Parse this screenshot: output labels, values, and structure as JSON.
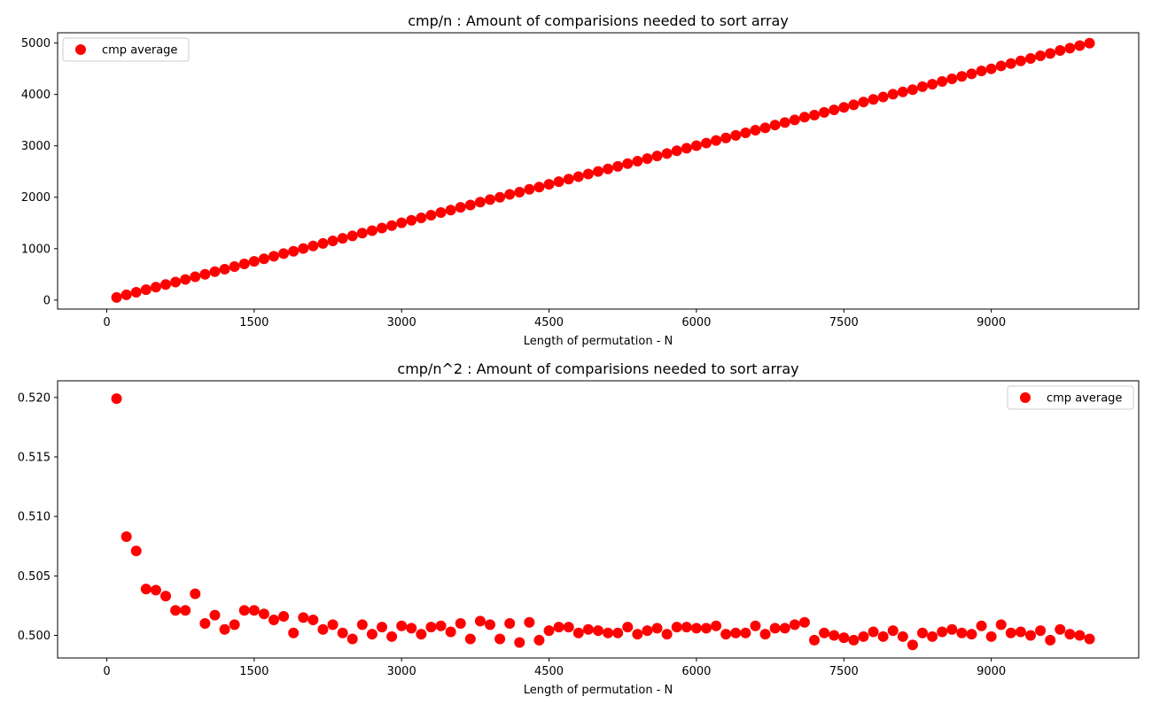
{
  "chart_data": [
    {
      "type": "scatter",
      "title": "cmp/n : Amount of comparisions needed to sort array",
      "xlabel": "Length of permutation - N",
      "ylabel": "",
      "xlim": [
        -500,
        10500
      ],
      "ylim": [
        -175,
        5200
      ],
      "xticks": [
        0,
        1500,
        3000,
        4500,
        6000,
        7500,
        9000
      ],
      "yticks": [
        0,
        1000,
        2000,
        3000,
        4000,
        5000
      ],
      "legend_position": "top-left",
      "marker_color": "#ff0000",
      "grid": false,
      "series": [
        {
          "name": "cmp average",
          "x": [
            100,
            200,
            300,
            400,
            500,
            600,
            700,
            800,
            900,
            1000,
            1100,
            1200,
            1300,
            1400,
            1500,
            1600,
            1700,
            1800,
            1900,
            2000,
            2100,
            2200,
            2300,
            2400,
            2500,
            2600,
            2700,
            2800,
            2900,
            3000,
            3100,
            3200,
            3300,
            3400,
            3500,
            3600,
            3700,
            3800,
            3900,
            4000,
            4100,
            4200,
            4300,
            4400,
            4500,
            4600,
            4700,
            4800,
            4900,
            5000,
            5100,
            5200,
            5300,
            5400,
            5500,
            5600,
            5700,
            5800,
            5900,
            6000,
            6100,
            6200,
            6300,
            6400,
            6500,
            6600,
            6700,
            6800,
            6900,
            7000,
            7100,
            7200,
            7300,
            7400,
            7500,
            7600,
            7700,
            7800,
            7900,
            8000,
            8100,
            8200,
            8300,
            8400,
            8500,
            8600,
            8700,
            8800,
            8900,
            9000,
            9100,
            9200,
            9300,
            9400,
            9500,
            9600,
            9700,
            9800,
            9900,
            10000
          ],
          "y": [
            52,
            102,
            152,
            202,
            252,
            302,
            351,
            401,
            453,
            501,
            552,
            601,
            651,
            703,
            753,
            803,
            853,
            903,
            950,
            1003,
            1053,
            1101,
            1152,
            1200,
            1249,
            1302,
            1350,
            1402,
            1449,
            1502,
            1552,
            1600,
            1652,
            1703,
            1751,
            1804,
            1849,
            1905,
            1954,
            1999,
            2055,
            2098,
            2155,
            2198,
            2252,
            2303,
            2353,
            2401,
            2453,
            2502,
            2551,
            2601,
            2654,
            2701,
            2752,
            2803,
            2850,
            2904,
            2954,
            3004,
            3054,
            3105,
            3154,
            3204,
            3254,
            3305,
            3350,
            3405,
            3454,
            3506,
            3558,
            3597,
            3652,
            3700,
            3748,
            3799,
            3853,
            3903,
            3950,
            4004,
            4049,
            4094,
            4152,
            4199,
            4253,
            4305,
            4352,
            4400,
            4457,
            4499,
            4555,
            4601,
            4653,
            4700,
            4752,
            4798,
            4855,
            4900,
            4950,
            4997
          ]
        }
      ]
    },
    {
      "type": "scatter",
      "title": "cmp/n^2 : Amount of comparisions needed to sort array",
      "xlabel": "Length of permutation - N",
      "ylabel": "",
      "xlim": [
        -500,
        10500
      ],
      "ylim": [
        0.4981,
        0.5214
      ],
      "xticks": [
        0,
        1500,
        3000,
        4500,
        6000,
        7500,
        9000
      ],
      "yticks": [
        0.5,
        0.505,
        0.51,
        0.515,
        0.52
      ],
      "ytick_labels": [
        "0.500",
        "0.505",
        "0.510",
        "0.515",
        "0.520"
      ],
      "legend_position": "top-right",
      "marker_color": "#ff0000",
      "grid": false,
      "series": [
        {
          "name": "cmp average",
          "x": [
            100,
            200,
            300,
            400,
            500,
            600,
            700,
            800,
            900,
            1000,
            1100,
            1200,
            1300,
            1400,
            1500,
            1600,
            1700,
            1800,
            1900,
            2000,
            2100,
            2200,
            2300,
            2400,
            2500,
            2600,
            2700,
            2800,
            2900,
            3000,
            3100,
            3200,
            3300,
            3400,
            3500,
            3600,
            3700,
            3800,
            3900,
            4000,
            4100,
            4200,
            4300,
            4400,
            4500,
            4600,
            4700,
            4800,
            4900,
            5000,
            5100,
            5200,
            5300,
            5400,
            5500,
            5600,
            5700,
            5800,
            5900,
            6000,
            6100,
            6200,
            6300,
            6400,
            6500,
            6600,
            6700,
            6800,
            6900,
            7000,
            7100,
            7200,
            7300,
            7400,
            7500,
            7600,
            7700,
            7800,
            7900,
            8000,
            8100,
            8200,
            8300,
            8400,
            8500,
            8600,
            8700,
            8800,
            8900,
            9000,
            9100,
            9200,
            9300,
            9400,
            9500,
            9600,
            9700,
            9800,
            9900,
            10000
          ],
          "y": [
            0.5199,
            0.5083,
            0.5071,
            0.5039,
            0.5038,
            0.5033,
            0.5021,
            0.5021,
            0.5035,
            0.501,
            0.5017,
            0.5005,
            0.5009,
            0.5021,
            0.5021,
            0.5018,
            0.5013,
            0.5016,
            0.5002,
            0.5015,
            0.5013,
            0.5005,
            0.5009,
            0.5002,
            0.4997,
            0.5009,
            0.5001,
            0.5007,
            0.4999,
            0.5008,
            0.5006,
            0.5001,
            0.5007,
            0.5008,
            0.5003,
            0.501,
            0.4997,
            0.5012,
            0.5009,
            0.4997,
            0.501,
            0.4994,
            0.5011,
            0.4996,
            0.5004,
            0.5007,
            0.5007,
            0.5002,
            0.5005,
            0.5004,
            0.5002,
            0.5002,
            0.5007,
            0.5001,
            0.5004,
            0.5006,
            0.5001,
            0.5007,
            0.5007,
            0.5006,
            0.5006,
            0.5008,
            0.5001,
            0.5002,
            0.5002,
            0.5008,
            0.5001,
            0.5006,
            0.5006,
            0.5009,
            0.5011,
            0.4996,
            0.5002,
            0.5,
            0.4998,
            0.4996,
            0.4999,
            0.5003,
            0.4999,
            0.5004,
            0.4999,
            0.4992,
            0.5002,
            0.4999,
            0.5003,
            0.5005,
            0.5002,
            0.5001,
            0.5008,
            0.4999,
            0.5009,
            0.5002,
            0.5003,
            0.5,
            0.5004,
            0.4996,
            0.5005,
            0.5001,
            0.5,
            0.4997
          ]
        }
      ]
    }
  ]
}
